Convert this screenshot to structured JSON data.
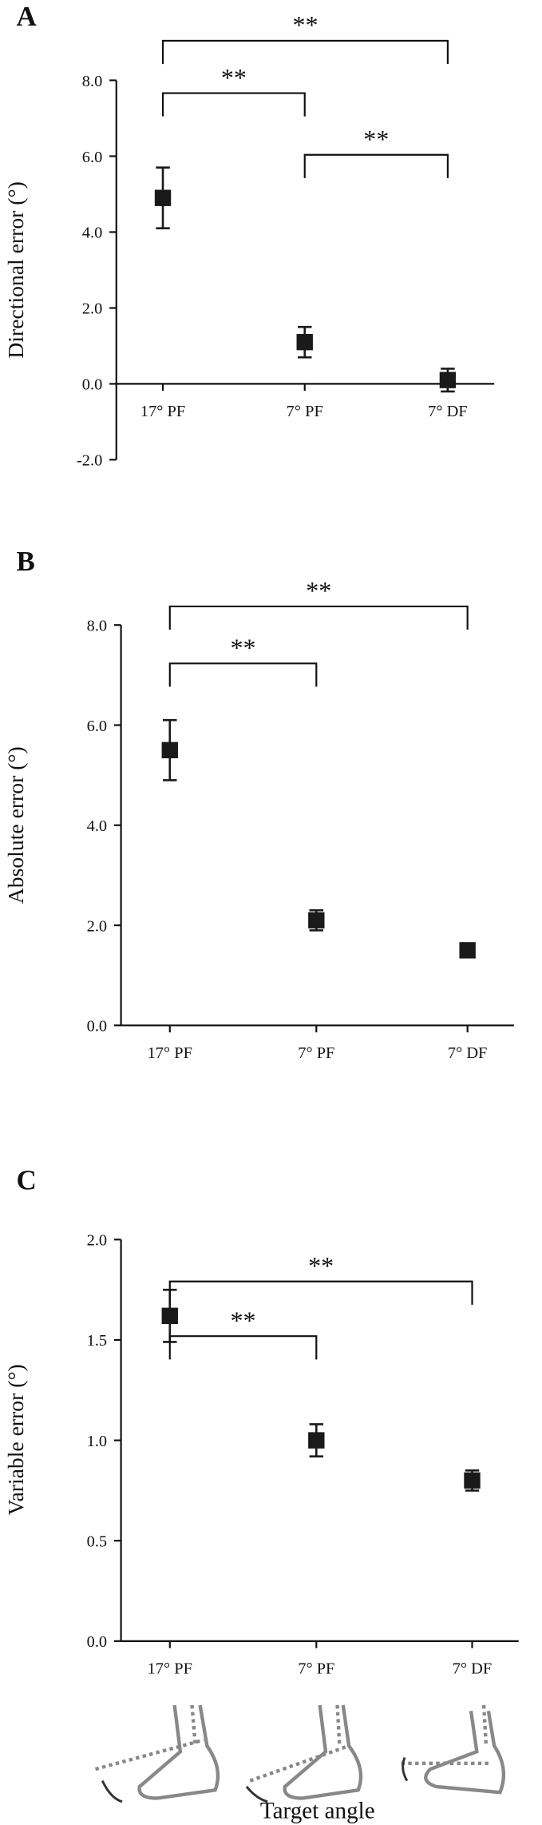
{
  "chart_data": [
    {
      "type": "errorpoint",
      "panel_label": "A",
      "y_label": "Directional error (°)",
      "categories": [
        "17° PF",
        "7° PF",
        "7° DF"
      ],
      "values": [
        4.9,
        1.1,
        0.1
      ],
      "errors": [
        0.8,
        0.4,
        0.3
      ],
      "color": "#1a1a1a",
      "ylim": [
        -2,
        8
      ],
      "yticks": [
        {
          "value": -2,
          "label": "-2.0"
        },
        {
          "value": 0,
          "label": "0.0"
        },
        {
          "value": 2,
          "label": "2.0"
        },
        {
          "value": 4,
          "label": "4.0"
        },
        {
          "value": 6,
          "label": "6.0"
        },
        {
          "value": 8,
          "label": "8.0"
        }
      ],
      "brackets": [
        {
          "from": 0,
          "to": 2,
          "label": "**"
        },
        {
          "from": 0,
          "to": 1,
          "label": "**"
        },
        {
          "from": 1,
          "to": 2,
          "label": "**"
        }
      ]
    },
    {
      "type": "errorpoint",
      "panel_label": "B",
      "y_label": "Absolute error (°)",
      "categories": [
        "17° PF",
        "7° PF",
        "7° DF"
      ],
      "values": [
        5.5,
        2.1,
        1.5
      ],
      "errors": [
        0.6,
        0.2,
        0.05
      ],
      "color": "#1a1a1a",
      "ylim": [
        0,
        8
      ],
      "yticks": [
        {
          "value": 0,
          "label": "0.0"
        },
        {
          "value": 2,
          "label": "2.0"
        },
        {
          "value": 4,
          "label": "4.0"
        },
        {
          "value": 6,
          "label": "6.0"
        },
        {
          "value": 8,
          "label": "8.0"
        }
      ],
      "brackets": [
        {
          "from": 0,
          "to": 2,
          "label": "**"
        },
        {
          "from": 0,
          "to": 1,
          "label": "**"
        }
      ]
    },
    {
      "type": "errorpoint",
      "panel_label": "C",
      "y_label": "Variable error (°)",
      "x_label": "Target angle",
      "categories": [
        "17° PF",
        "7° PF",
        "7° DF"
      ],
      "values": [
        1.62,
        1.0,
        0.8
      ],
      "errors": [
        0.13,
        0.08,
        0.05
      ],
      "color": "#1a1a1a",
      "ylim": [
        0,
        2
      ],
      "yticks": [
        {
          "value": 0,
          "label": "0.0"
        },
        0.5,
        {
          "value": 1,
          "label": "1.0"
        },
        1.5,
        {
          "value": 2,
          "label": "2.0"
        }
      ],
      "brackets": [
        {
          "from": 0,
          "to": 2,
          "label": "**"
        },
        {
          "from": 0,
          "to": 1,
          "label": "**"
        }
      ]
    }
  ]
}
